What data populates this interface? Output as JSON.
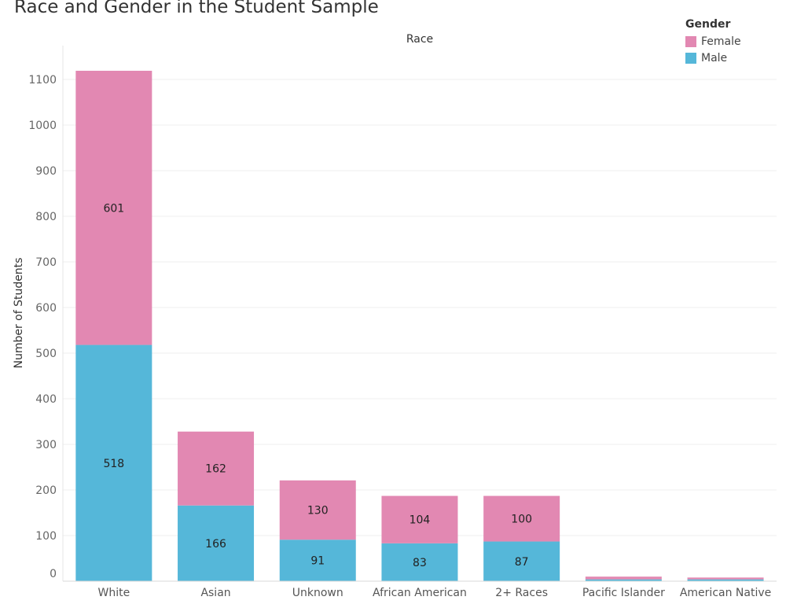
{
  "chart_data": {
    "type": "bar",
    "stacked": true,
    "title": "Race and Gender in the Student Sample",
    "column_header": "Race",
    "ylabel": "Number of Students",
    "ylim": [
      0,
      1150
    ],
    "yticks": [
      0,
      100,
      200,
      300,
      400,
      500,
      600,
      700,
      800,
      900,
      1000,
      1100
    ],
    "grid": true,
    "legend": {
      "title": "Gender",
      "placement": "top-right"
    },
    "categories": [
      "White",
      "Asian",
      "Unknown",
      "African American",
      "2+ Races",
      "Pacific Islander",
      "American Native"
    ],
    "series": [
      {
        "name": "Male",
        "color": "#55b7d9",
        "values": [
          518,
          166,
          91,
          83,
          87,
          4,
          4
        ]
      },
      {
        "name": "Female",
        "color": "#e288b2",
        "values": [
          601,
          162,
          130,
          104,
          100,
          6,
          4
        ]
      }
    ],
    "value_labels": {
      "Male": [
        "518",
        "166",
        "91",
        "83",
        "87",
        "",
        ""
      ],
      "Female": [
        "601",
        "162",
        "130",
        "104",
        "100",
        "",
        ""
      ]
    }
  },
  "legend_items": [
    {
      "label": "Female",
      "color": "#e288b2"
    },
    {
      "label": "Male",
      "color": "#55b7d9"
    }
  ]
}
